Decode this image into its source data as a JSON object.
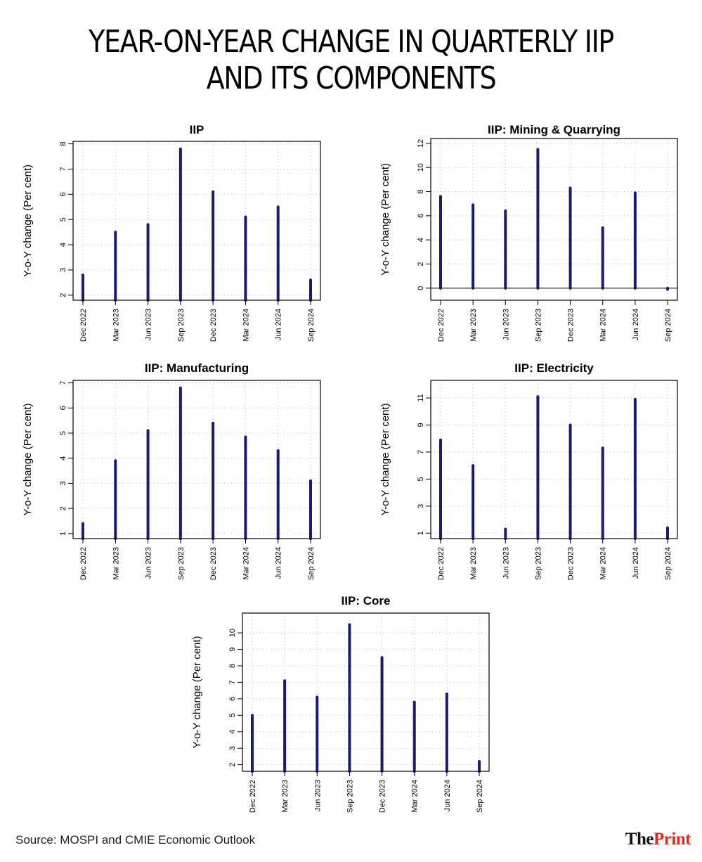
{
  "title_lines": [
    "YEAR-ON-YEAR CHANGE IN QUARTERLY IIP",
    "AND ITS COMPONENTS"
  ],
  "source": "Source: MOSPI and CMIE Economic Outlook",
  "logo": {
    "the": "The",
    "print": "Print"
  },
  "colors": {
    "bar": "#1a1a6e",
    "grid": "#b5b5b5",
    "accent": "#e0281c"
  },
  "chart_data": [
    {
      "type": "bar",
      "title": "IIP",
      "ylabel": "Y-o-Y change (Per cent)",
      "categories": [
        "Dec 2022",
        "Mar 2023",
        "Jun 2023",
        "Sep 2023",
        "Dec 2023",
        "Mar 2024",
        "Jun 2024",
        "Sep 2024"
      ],
      "values": [
        2.8,
        4.5,
        4.8,
        7.8,
        6.1,
        5.1,
        5.5,
        2.6
      ],
      "ylim": [
        1.8,
        8.1
      ],
      "yticks": [
        2,
        3,
        4,
        5,
        6,
        7,
        8
      ],
      "zero_line": false,
      "grid": true
    },
    {
      "type": "bar",
      "title": "IIP: Mining & Quarrying",
      "ylabel": "Y-o-Y change (Per cent)",
      "categories": [
        "Dec 2022",
        "Mar 2023",
        "Jun 2023",
        "Sep 2023",
        "Dec 2023",
        "Mar 2024",
        "Jun 2024",
        "Sep 2024"
      ],
      "values": [
        7.6,
        6.9,
        6.4,
        11.5,
        8.3,
        5.0,
        7.9,
        -0.1
      ],
      "ylim": [
        -1,
        12.4
      ],
      "yticks": [
        0,
        2,
        4,
        6,
        8,
        10,
        12
      ],
      "zero_line": true,
      "grid": true
    },
    {
      "type": "bar",
      "title": "IIP: Manufacturing",
      "ylabel": "Y-o-Y change (Per cent)",
      "categories": [
        "Dec 2022",
        "Mar 2023",
        "Jun 2023",
        "Sep 2023",
        "Dec 2023",
        "Mar 2024",
        "Jun 2024",
        "Sep 2024"
      ],
      "values": [
        1.4,
        3.9,
        5.1,
        6.8,
        5.4,
        4.85,
        4.3,
        3.1
      ],
      "ylim": [
        0.8,
        7.1
      ],
      "yticks": [
        1,
        2,
        3,
        4,
        5,
        6,
        7
      ],
      "zero_line": false,
      "grid": true
    },
    {
      "type": "bar",
      "title": "IIP: Electricity",
      "ylabel": "Y-o-Y change (Per cent)",
      "categories": [
        "Dec 2022",
        "Mar 2023",
        "Jun 2023",
        "Sep 2023",
        "Dec 2023",
        "Mar 2024",
        "Jun 2024",
        "Sep 2024"
      ],
      "values": [
        7.9,
        6.0,
        1.3,
        11.1,
        9.0,
        7.3,
        10.9,
        1.4
      ],
      "ylim": [
        0.6,
        12.3
      ],
      "yticks": [
        1,
        3,
        5,
        7,
        9,
        11
      ],
      "zero_line": false,
      "grid": true
    },
    {
      "type": "bar",
      "title": "IIP: Core",
      "ylabel": "Y-o-Y change (Per cent)",
      "categories": [
        "Dec 2022",
        "Mar 2023",
        "Jun 2023",
        "Sep 2023",
        "Dec 2023",
        "Mar 2024",
        "Jun 2024",
        "Sep 2024"
      ],
      "values": [
        5.0,
        7.1,
        6.1,
        10.5,
        8.5,
        5.8,
        6.3,
        2.2
      ],
      "ylim": [
        1.6,
        11.2
      ],
      "yticks": [
        2,
        3,
        4,
        5,
        6,
        7,
        8,
        9,
        10
      ],
      "zero_line": false,
      "grid": true
    }
  ]
}
